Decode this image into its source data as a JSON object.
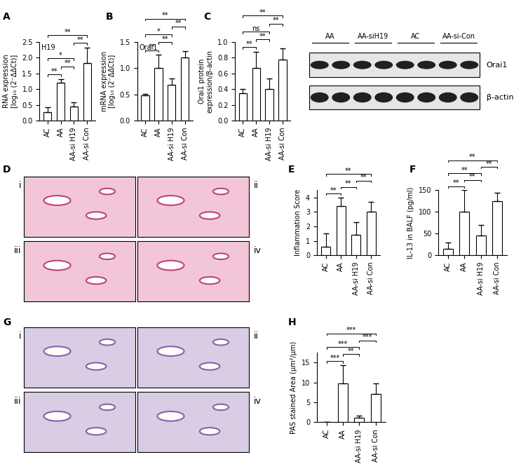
{
  "chart_data": [
    {
      "type": "bar",
      "panel": "A",
      "title": "H19",
      "ylabel": "RNA expression\n[log₁₀ (2⁻ΔΔCt)]",
      "categories": [
        "AC",
        "AA",
        "AA-si H19",
        "AA-si Con"
      ],
      "values": [
        0.28,
        1.2,
        0.45,
        1.83
      ],
      "errors": [
        0.15,
        0.12,
        0.12,
        0.48
      ],
      "ylim": [
        0,
        2.5
      ],
      "yticks": [
        {
          "value": 0,
          "label": "0.0"
        },
        {
          "value": 0.5,
          "label": "0.5"
        },
        {
          "value": 1.0,
          "label": "1.0"
        },
        {
          "value": 1.5,
          "label": "1.5"
        },
        {
          "value": 2.0,
          "label": "2.0"
        },
        {
          "value": 2.5,
          "label": "2.5"
        }
      ],
      "color": "#ffffff",
      "comparisons": [
        {
          "pair": [
            0,
            1
          ],
          "label": "**"
        },
        {
          "pair": [
            1,
            2
          ],
          "label": "**"
        },
        {
          "pair": [
            0,
            2
          ],
          "label": "*"
        },
        {
          "pair": [
            2,
            3
          ],
          "label": "**"
        },
        {
          "pair": [
            0,
            3
          ],
          "label": "**"
        }
      ]
    },
    {
      "type": "bar",
      "panel": "B",
      "title": "Orai1",
      "ylabel": "mRNA expression\n[log₁₀ (2⁻ΔΔCt)]",
      "categories": [
        "AC",
        "AA",
        "AA-si H19",
        "AA-si Con"
      ],
      "values": [
        0.48,
        1.0,
        0.68,
        1.2
      ],
      "errors": [
        0.03,
        0.25,
        0.12,
        0.12
      ],
      "ylim": [
        0,
        1.5
      ],
      "yticks": [
        {
          "value": 0,
          "label": "0.0"
        },
        {
          "value": 0.5,
          "label": "0.5"
        },
        {
          "value": 1.0,
          "label": "1.0"
        },
        {
          "value": 1.5,
          "label": "1.5"
        }
      ],
      "color": "#ffffff",
      "comparisons": [
        {
          "pair": [
            0,
            1
          ],
          "label": "**"
        },
        {
          "pair": [
            1,
            2
          ],
          "label": "**"
        },
        {
          "pair": [
            0,
            2
          ],
          "label": "*"
        },
        {
          "pair": [
            2,
            3
          ],
          "label": "**"
        },
        {
          "pair": [
            0,
            3
          ],
          "label": "**"
        }
      ]
    },
    {
      "type": "bar",
      "panel": "C",
      "title": "",
      "ylabel": "Orai1 protein\nexpression/β-actin",
      "categories": [
        "AC",
        "AA",
        "AA-si H19",
        "AA-si Con"
      ],
      "values": [
        0.35,
        0.67,
        0.4,
        0.77
      ],
      "errors": [
        0.05,
        0.2,
        0.13,
        0.15
      ],
      "ylim": [
        0,
        1.0
      ],
      "yticks": [
        {
          "value": 0,
          "label": "0.0"
        },
        {
          "value": 0.2,
          "label": "0.2"
        },
        {
          "value": 0.4,
          "label": "0.4"
        },
        {
          "value": 0.6,
          "label": "0.6"
        },
        {
          "value": 0.8,
          "label": "0.8"
        },
        {
          "value": 1.0,
          "label": "1.0"
        }
      ],
      "color": "#ffffff",
      "comparisons": [
        {
          "pair": [
            0,
            1
          ],
          "label": "**"
        },
        {
          "pair": [
            1,
            2
          ],
          "label": "**"
        },
        {
          "pair": [
            0,
            2
          ],
          "label": "ns"
        },
        {
          "pair": [
            2,
            3
          ],
          "label": "**"
        },
        {
          "pair": [
            0,
            3
          ],
          "label": "**"
        }
      ]
    },
    {
      "type": "bar",
      "panel": "E",
      "title": "",
      "ylabel": "Inflammation Score",
      "categories": [
        "AC",
        "AA",
        "AA-si H19",
        "AA-si Con"
      ],
      "values": [
        0.6,
        3.4,
        1.4,
        3.0
      ],
      "errors": [
        0.9,
        0.6,
        0.9,
        0.7
      ],
      "ylim": [
        0,
        4.5
      ],
      "yticks": [
        0,
        1,
        2,
        3,
        4
      ],
      "color": "#ffffff",
      "comparisons": [
        {
          "pair": [
            0,
            1
          ],
          "label": "**"
        },
        {
          "pair": [
            1,
            2
          ],
          "label": "**"
        },
        {
          "pair": [
            2,
            3
          ],
          "label": "**"
        },
        {
          "pair": [
            0,
            3
          ],
          "label": "**"
        }
      ]
    },
    {
      "type": "bar",
      "panel": "F",
      "title": "",
      "ylabel": "IL-13 in BALF (pg/ml)",
      "categories": [
        "AC",
        "AA",
        "AA-si H19",
        "AA-si Con"
      ],
      "values": [
        15,
        100,
        45,
        125
      ],
      "errors": [
        15,
        50,
        25,
        20
      ],
      "ylim": [
        0,
        150
      ],
      "yticks": [
        0,
        50,
        100,
        150
      ],
      "color": "#ffffff",
      "comparisons": [
        {
          "pair": [
            0,
            1
          ],
          "label": "**"
        },
        {
          "pair": [
            1,
            2
          ],
          "label": "**"
        },
        {
          "pair": [
            0,
            2
          ],
          "label": "**"
        },
        {
          "pair": [
            2,
            3
          ],
          "label": "**"
        },
        {
          "pair": [
            0,
            3
          ],
          "label": "**"
        }
      ]
    },
    {
      "type": "bar",
      "panel": "H",
      "title": "",
      "ylabel": "PAS stained Area (μm²/μm)",
      "categories": [
        "AC",
        "AA",
        "AA-si H19",
        "AA-si Con"
      ],
      "values": [
        0,
        9.8,
        1.2,
        7.2
      ],
      "errors": [
        0,
        4.5,
        0.4,
        2.5
      ],
      "ylim": [
        0,
        17.5
      ],
      "yticks": [
        0,
        5,
        10,
        15
      ],
      "color": "#ffffff",
      "comparisons": [
        {
          "pair": [
            0,
            1
          ],
          "label": "***"
        },
        {
          "pair": [
            1,
            2
          ],
          "label": "**"
        },
        {
          "pair": [
            0,
            2
          ],
          "label": "***"
        },
        {
          "pair": [
            2,
            3
          ],
          "label": "***"
        },
        {
          "pair": [
            0,
            3
          ],
          "label": "***"
        }
      ]
    }
  ],
  "blot": {
    "lanes": [
      "AA",
      "AA-siH19",
      "AC",
      "AA-si-Con"
    ],
    "bands": [
      "Orai1",
      "β-actin"
    ]
  },
  "micrographs": [
    {
      "panel": "D",
      "labels": [
        "i",
        "ii",
        "iii",
        "iv"
      ]
    },
    {
      "panel": "G",
      "labels": [
        "i",
        "ii",
        "iii",
        "iv"
      ]
    }
  ]
}
